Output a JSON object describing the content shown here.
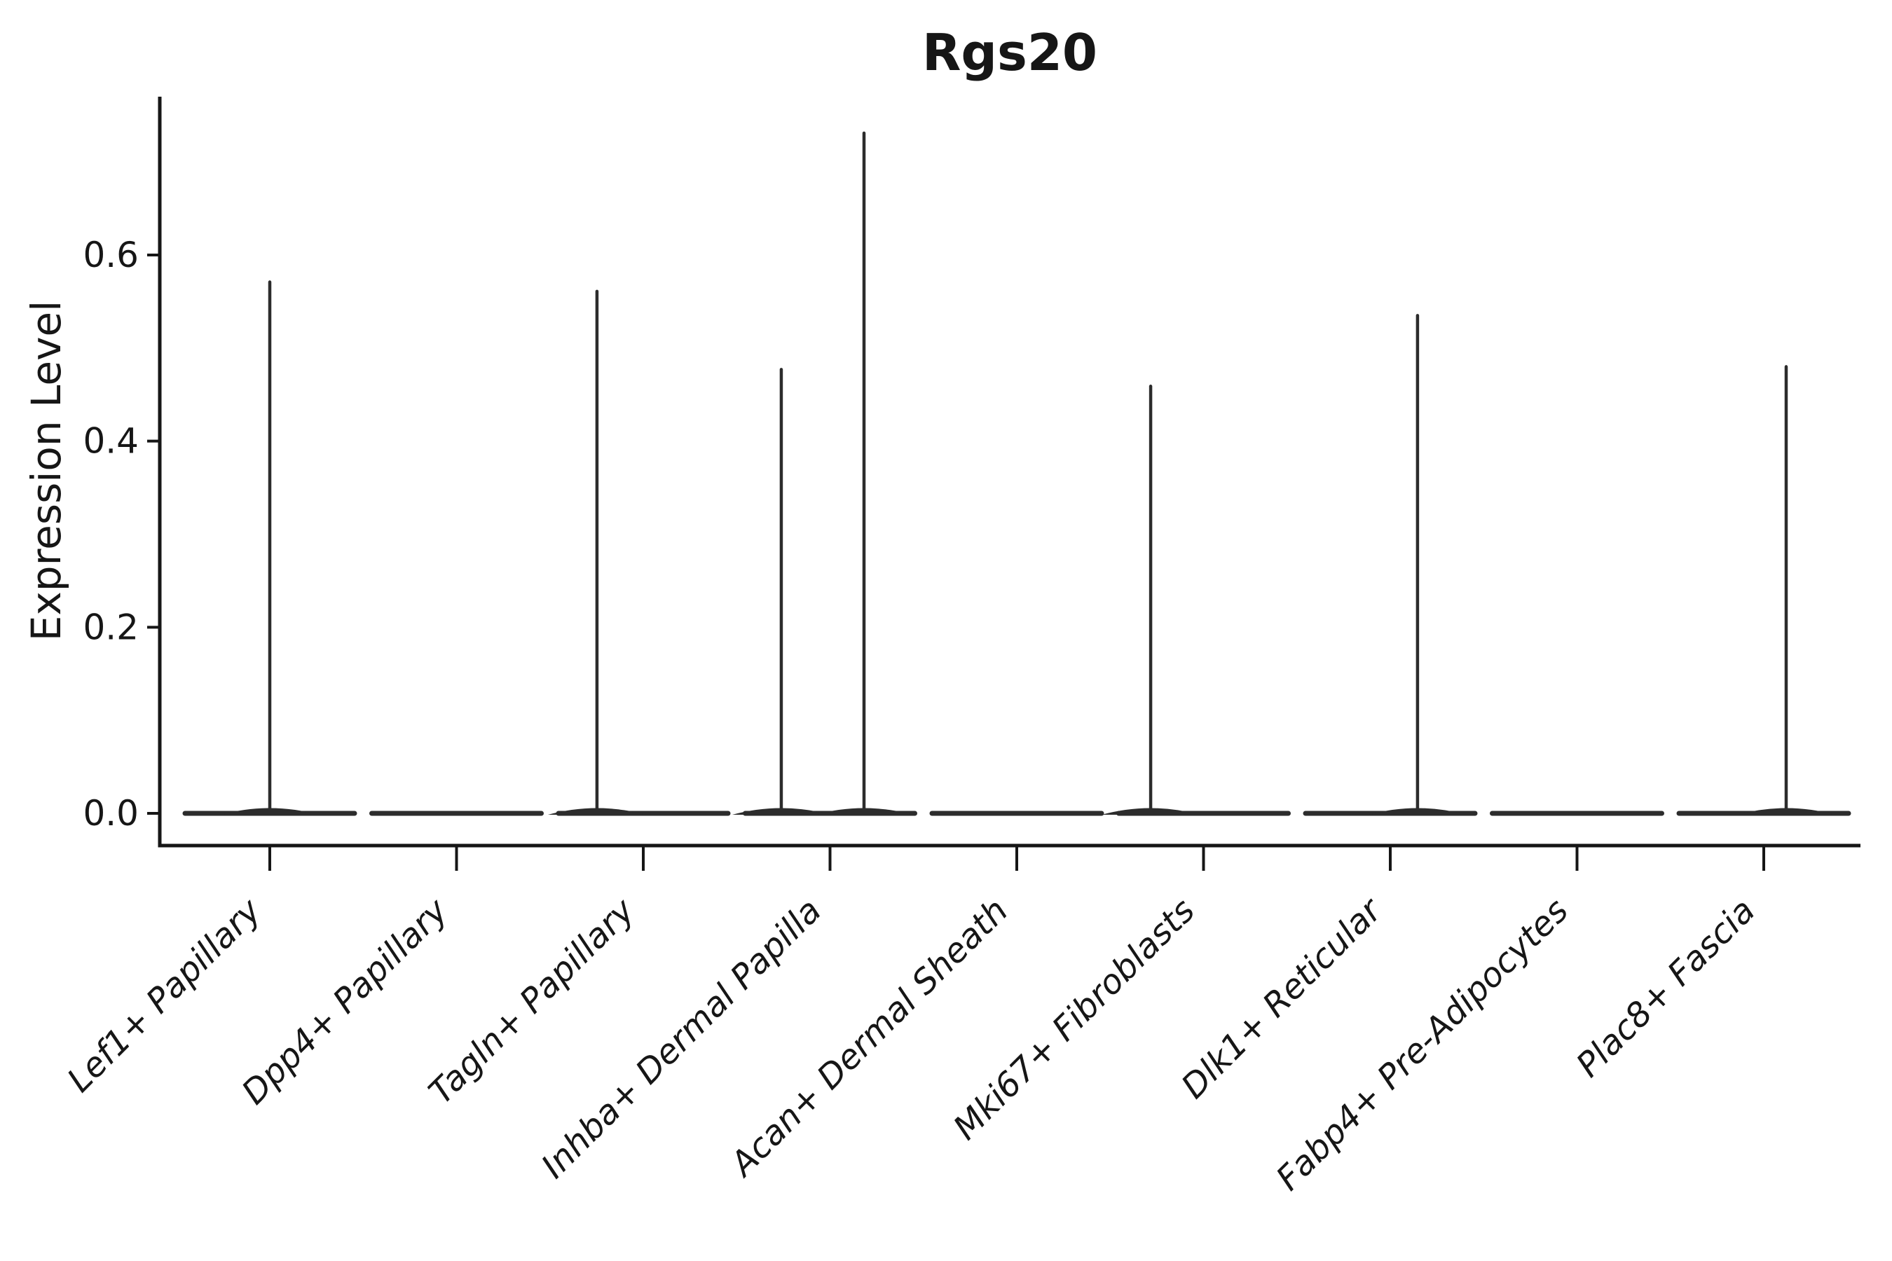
{
  "chart_data": {
    "type": "violin",
    "title": "Rgs20",
    "xlabel": "",
    "ylabel": "Expression Level",
    "yticks": [
      0.0,
      0.2,
      0.4,
      0.6
    ],
    "ytick_labels": [
      "0.0",
      "0.2",
      "0.4",
      "0.6"
    ],
    "ylim": [
      -0.035,
      0.77
    ],
    "grid": false,
    "legend": "none",
    "categories": [
      "Lef1+ Papillary",
      "Dpp4+ Papillary",
      "Tagln+ Papillary",
      "Inhba+ Dermal Papilla",
      "Acan+ Dermal Sheath",
      "Mki67+ Fibroblasts",
      "Dlk1+ Reticular",
      "Fabp4+ Pre-Adipocytes",
      "Plac8+ Fascia"
    ],
    "violins": [
      {
        "label": "Lef1+ Papillary",
        "max_expression": 0.57,
        "spikes": [
          {
            "value": 0.571,
            "x_offset_frac": 0.0
          }
        ]
      },
      {
        "label": "Dpp4+ Papillary",
        "max_expression": 0.0,
        "spikes": []
      },
      {
        "label": "Tagln+ Papillary",
        "max_expression": 0.56,
        "spikes": [
          {
            "value": 0.561,
            "x_offset_frac": -0.248
          }
        ]
      },
      {
        "label": "Inhba+ Dermal Papilla",
        "max_expression": 0.73,
        "spikes": [
          {
            "value": 0.477,
            "x_offset_frac": -0.261
          },
          {
            "value": 0.731,
            "x_offset_frac": 0.182
          }
        ]
      },
      {
        "label": "Acan+ Dermal Sheath",
        "max_expression": 0.0,
        "spikes": []
      },
      {
        "label": "Mki67+ Fibroblasts",
        "max_expression": 0.46,
        "spikes": [
          {
            "value": 0.459,
            "x_offset_frac": -0.283
          }
        ]
      },
      {
        "label": "Dlk1+ Reticular",
        "max_expression": 0.54,
        "spikes": [
          {
            "value": 0.535,
            "x_offset_frac": 0.146
          }
        ]
      },
      {
        "label": "Fabp4+ Pre-Adipocytes",
        "max_expression": 0.0,
        "spikes": []
      },
      {
        "label": "Plac8+ Fascia",
        "max_expression": 0.48,
        "spikes": [
          {
            "value": 0.48,
            "x_offset_frac": 0.12
          }
        ]
      }
    ],
    "colors": {
      "violin_line": "#2c2c2c",
      "spine": "#161616",
      "text": "#161616",
      "background": "#ffffff"
    }
  }
}
